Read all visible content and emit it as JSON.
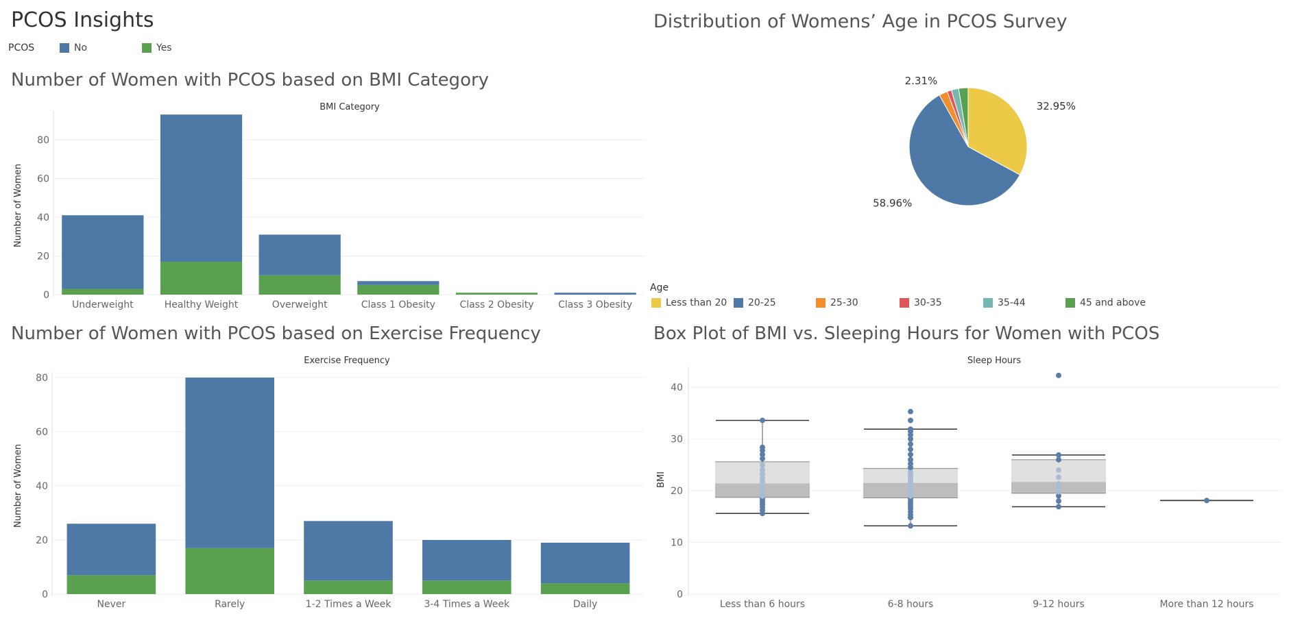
{
  "dashboard": {
    "title": "PCOS Insights"
  },
  "pcos_legend": {
    "title": "PCOS",
    "items": [
      {
        "label": "No",
        "color": "#4e79a7"
      },
      {
        "label": "Yes",
        "color": "#59a14f"
      }
    ]
  },
  "age_legend": {
    "title": "Age",
    "items": [
      {
        "label": "Less than 20",
        "color": "#edc948"
      },
      {
        "label": "20-25",
        "color": "#4e79a7"
      },
      {
        "label": "25-30",
        "color": "#f28e2b"
      },
      {
        "label": "30-35",
        "color": "#e15759"
      },
      {
        "label": "35-44",
        "color": "#76b7b2"
      },
      {
        "label": "45 and above",
        "color": "#59a14f"
      }
    ]
  },
  "chart_data": [
    {
      "id": "bmi",
      "type": "bar",
      "title": "Number of Women with PCOS based on BMI Category",
      "header": "BMI Category",
      "ylabel": "Number of Women",
      "ylim": [
        0,
        92
      ],
      "yticks": [
        0,
        20,
        40,
        60,
        80
      ],
      "categories": [
        "Underweight",
        "Healthy Weight",
        "Overweight",
        "Class 1 Obesity",
        "Class 2 Obesity",
        "Class 3 Obesity"
      ],
      "series": [
        {
          "name": "Yes",
          "color": "#59a14f",
          "values": [
            3,
            17,
            10,
            5,
            1,
            0
          ]
        },
        {
          "name": "No",
          "color": "#4e79a7",
          "values": [
            38,
            76,
            21,
            2,
            0,
            1
          ]
        }
      ]
    },
    {
      "id": "exercise",
      "type": "bar",
      "title": "Number of Women with PCOS based on Exercise Frequency",
      "header": "Exercise Frequency",
      "ylabel": "Number of Women",
      "ylim": [
        0,
        80
      ],
      "yticks": [
        0,
        20,
        40,
        60,
        80
      ],
      "categories": [
        "Never",
        "Rarely",
        "1-2 Times a Week",
        "3-4 Times a Week",
        "Daily"
      ],
      "series": [
        {
          "name": "Yes",
          "color": "#59a14f",
          "values": [
            7,
            17,
            5,
            5,
            4
          ]
        },
        {
          "name": "No",
          "color": "#4e79a7",
          "values": [
            19,
            63,
            22,
            15,
            15
          ]
        }
      ]
    },
    {
      "id": "age",
      "type": "pie",
      "title": "Distribution of Womens’ Age in PCOS Survey",
      "slices": [
        {
          "label": "Less than 20",
          "value": 32.95,
          "color": "#edc948",
          "text": "32.95%"
        },
        {
          "label": "20-25",
          "value": 58.96,
          "color": "#4e79a7",
          "text": "58.96%"
        },
        {
          "label": "25-30",
          "value": 2.31,
          "color": "#f28e2b",
          "text": "2.31%"
        },
        {
          "label": "30-35",
          "value": 1.2,
          "color": "#e15759",
          "text": ""
        },
        {
          "label": "35-44",
          "value": 2.0,
          "color": "#76b7b2",
          "text": ""
        },
        {
          "label": "45 and above",
          "value": 2.58,
          "color": "#59a14f",
          "text": ""
        }
      ]
    },
    {
      "id": "sleep",
      "type": "box",
      "title": "Box Plot of BMI vs. Sleeping Hours for Women with PCOS",
      "header": "Sleep Hours",
      "ylabel": "BMI",
      "ylim": [
        0,
        44
      ],
      "yticks": [
        0,
        10,
        20,
        30,
        40
      ],
      "categories": [
        "Less than 6 hours",
        "6-8 hours",
        "9-12 hours",
        "More than 12 hours"
      ],
      "boxes": [
        {
          "min": 15.6,
          "q1": 18.7,
          "median": 21.4,
          "q3": 25.6,
          "max": 33.6,
          "points": [
            15.6,
            16.2,
            16.8,
            17.3,
            17.8,
            18.2,
            18.6,
            19.0,
            19.5,
            20.0,
            20.6,
            21.2,
            21.8,
            22.5,
            23.2,
            24.0,
            25.0,
            26.2,
            27.0,
            27.8,
            28.4,
            33.6
          ]
        },
        {
          "min": 13.2,
          "q1": 18.6,
          "median": 21.5,
          "q3": 24.3,
          "max": 31.9,
          "points": [
            13.2,
            14.8,
            15.3,
            15.9,
            16.5,
            17.0,
            17.5,
            18.0,
            18.5,
            19.0,
            19.5,
            20.0,
            20.5,
            21.0,
            21.5,
            22.0,
            22.5,
            23.0,
            23.5,
            24.0,
            24.5,
            25.2,
            26.0,
            27.0,
            28.0,
            29.0,
            30.0,
            30.8,
            31.5,
            31.9,
            33.6,
            35.3
          ]
        },
        {
          "min": 16.9,
          "q1": 19.5,
          "median": 21.7,
          "q3": 26.0,
          "max": 26.9,
          "points": [
            16.9,
            18.0,
            19.0,
            19.8,
            20.6,
            21.3,
            22.6,
            24.0,
            26.0,
            26.9,
            42.3
          ]
        },
        {
          "min": 18.1,
          "q1": 18.1,
          "median": 18.1,
          "q3": 18.1,
          "max": 18.1,
          "points": [
            18.1
          ]
        }
      ]
    }
  ]
}
